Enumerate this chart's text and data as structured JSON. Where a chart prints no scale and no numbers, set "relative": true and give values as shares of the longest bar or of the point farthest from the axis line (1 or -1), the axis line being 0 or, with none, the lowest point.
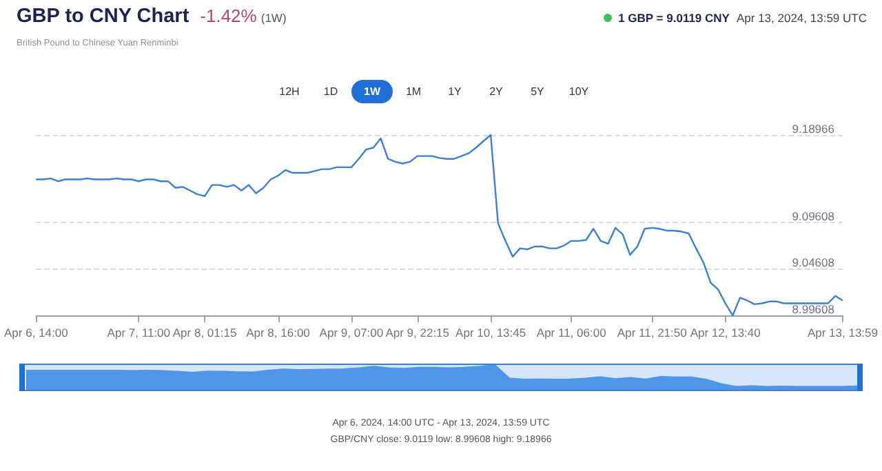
{
  "chart_data": [
    {
      "type": "line",
      "title": "GBP to CNY Chart",
      "subtitle": "British Pound to Chinese Yuan Renminbi",
      "annotations": [
        "-1.42%",
        "(1W)",
        "1 GBP = 9.0119 CNY",
        "Apr 13, 2024, 13:59 UTC",
        "12H",
        "1D",
        "1W",
        "1M",
        "1Y",
        "2Y",
        "5Y",
        "10Y",
        "Apr 6, 2024, 14:00 UTC - Apr 13, 2024, 13:59 UTC",
        "GBP/CNY close: 9.0119 low: 8.99608 high: 9.18966"
      ],
      "categories": [
        "Apr 6, 14:00",
        null,
        null,
        null,
        null,
        null,
        null,
        null,
        null,
        null,
        null,
        null,
        null,
        null,
        "Apr 7, 11:00",
        null,
        null,
        null,
        null,
        null,
        null,
        null,
        null,
        "Apr 8, 01:15",
        null,
        null,
        null,
        null,
        null,
        null,
        null,
        null,
        null,
        "Apr 8, 16:00",
        null,
        null,
        null,
        null,
        null,
        null,
        null,
        null,
        null,
        "Apr 9, 07:00",
        null,
        null,
        null,
        null,
        null,
        null,
        null,
        null,
        "Apr 9, 22:15",
        null,
        null,
        null,
        null,
        null,
        null,
        null,
        null,
        null,
        "Apr 10, 13:45",
        null,
        null,
        null,
        null,
        null,
        null,
        null,
        null,
        null,
        null,
        "Apr 11, 06:00",
        null,
        null,
        null,
        null,
        null,
        null,
        null,
        null,
        null,
        null,
        "Apr 11, 21:50",
        null,
        null,
        null,
        null,
        null,
        null,
        null,
        null,
        null,
        "Apr 12, 13:40",
        null,
        null,
        null,
        null,
        null,
        null,
        null,
        null,
        null,
        null,
        null,
        null,
        null,
        null,
        null,
        "Apr 13, 13:59"
      ],
      "series": [
        {
          "color": "#3d7fd1",
          "values": [
            9.142,
            9.142,
            9.143,
            9.14,
            9.142,
            9.142,
            9.142,
            9.143,
            9.142,
            9.142,
            9.142,
            9.143,
            9.142,
            9.142,
            9.14,
            9.142,
            9.142,
            9.14,
            9.14,
            9.133,
            9.134,
            9.13,
            9.126,
            9.124,
            9.136,
            9.136,
            9.134,
            9.136,
            9.13,
            9.136,
            9.127,
            9.133,
            9.142,
            9.146,
            9.152,
            9.149,
            9.149,
            9.149,
            9.151,
            9.153,
            9.153,
            9.155,
            9.155,
            9.155,
            9.164,
            9.174,
            9.176,
            9.186,
            9.164,
            9.161,
            9.159,
            9.161,
            9.167,
            9.167,
            9.167,
            9.165,
            9.164,
            9.164,
            9.167,
            9.17,
            9.176,
            9.183,
            9.18966,
            9.095,
            9.076,
            9.059,
            9.068,
            9.067,
            9.07,
            9.07,
            9.068,
            9.068,
            9.071,
            9.076,
            9.076,
            9.077,
            9.089,
            9.076,
            9.073,
            9.09,
            9.083,
            9.061,
            9.07,
            9.089,
            9.09,
            9.089,
            9.087,
            9.087,
            9.086,
            9.084,
            9.068,
            9.053,
            9.031,
            9.024,
            9.009,
            8.99608,
            9.015,
            9.012,
            9.008,
            9.009,
            9.011,
            9.011,
            9.009,
            9.009,
            9.009,
            9.009,
            9.009,
            9.009,
            9.009,
            9.017,
            9.0119
          ]
        }
      ],
      "ylim": [
        8.99608,
        9.18966
      ],
      "yticks": [
        8.99608,
        9.04608,
        9.09608,
        9.18966
      ],
      "grid": "y",
      "marker": "none",
      "line_style": "solid"
    },
    {
      "type": "area",
      "relative": true,
      "categories": [
        null,
        null,
        null,
        null,
        null,
        null,
        null,
        null,
        null,
        null,
        null,
        null,
        null,
        null,
        null,
        null,
        null,
        null,
        null,
        null,
        null,
        null,
        null,
        null,
        null,
        null,
        null,
        null,
        null,
        null,
        null,
        null,
        null,
        null,
        null,
        null,
        null,
        null,
        null,
        null,
        null,
        null,
        null,
        null,
        null,
        null,
        null,
        null,
        null,
        null,
        null,
        null,
        null,
        null,
        null,
        null
      ],
      "series": [
        {
          "color": "#4f95e8",
          "values": [
            0.77,
            0.77,
            0.77,
            0.77,
            0.77,
            0.77,
            0.77,
            0.76,
            0.77,
            0.76,
            0.73,
            0.69,
            0.74,
            0.73,
            0.71,
            0.7,
            0.77,
            0.82,
            0.8,
            0.81,
            0.82,
            0.83,
            0.87,
            0.93,
            0.87,
            0.85,
            0.89,
            0.89,
            0.87,
            0.89,
            0.93,
            1.0,
            0.45,
            0.41,
            0.42,
            0.41,
            0.42,
            0.45,
            0.51,
            0.43,
            0.48,
            0.42,
            0.52,
            0.5,
            0.5,
            0.41,
            0.23,
            0.12,
            0.15,
            0.12,
            0.13,
            0.12,
            0.12,
            0.12,
            0.12,
            0.14
          ]
        }
      ],
      "marker": "none"
    }
  ]
}
